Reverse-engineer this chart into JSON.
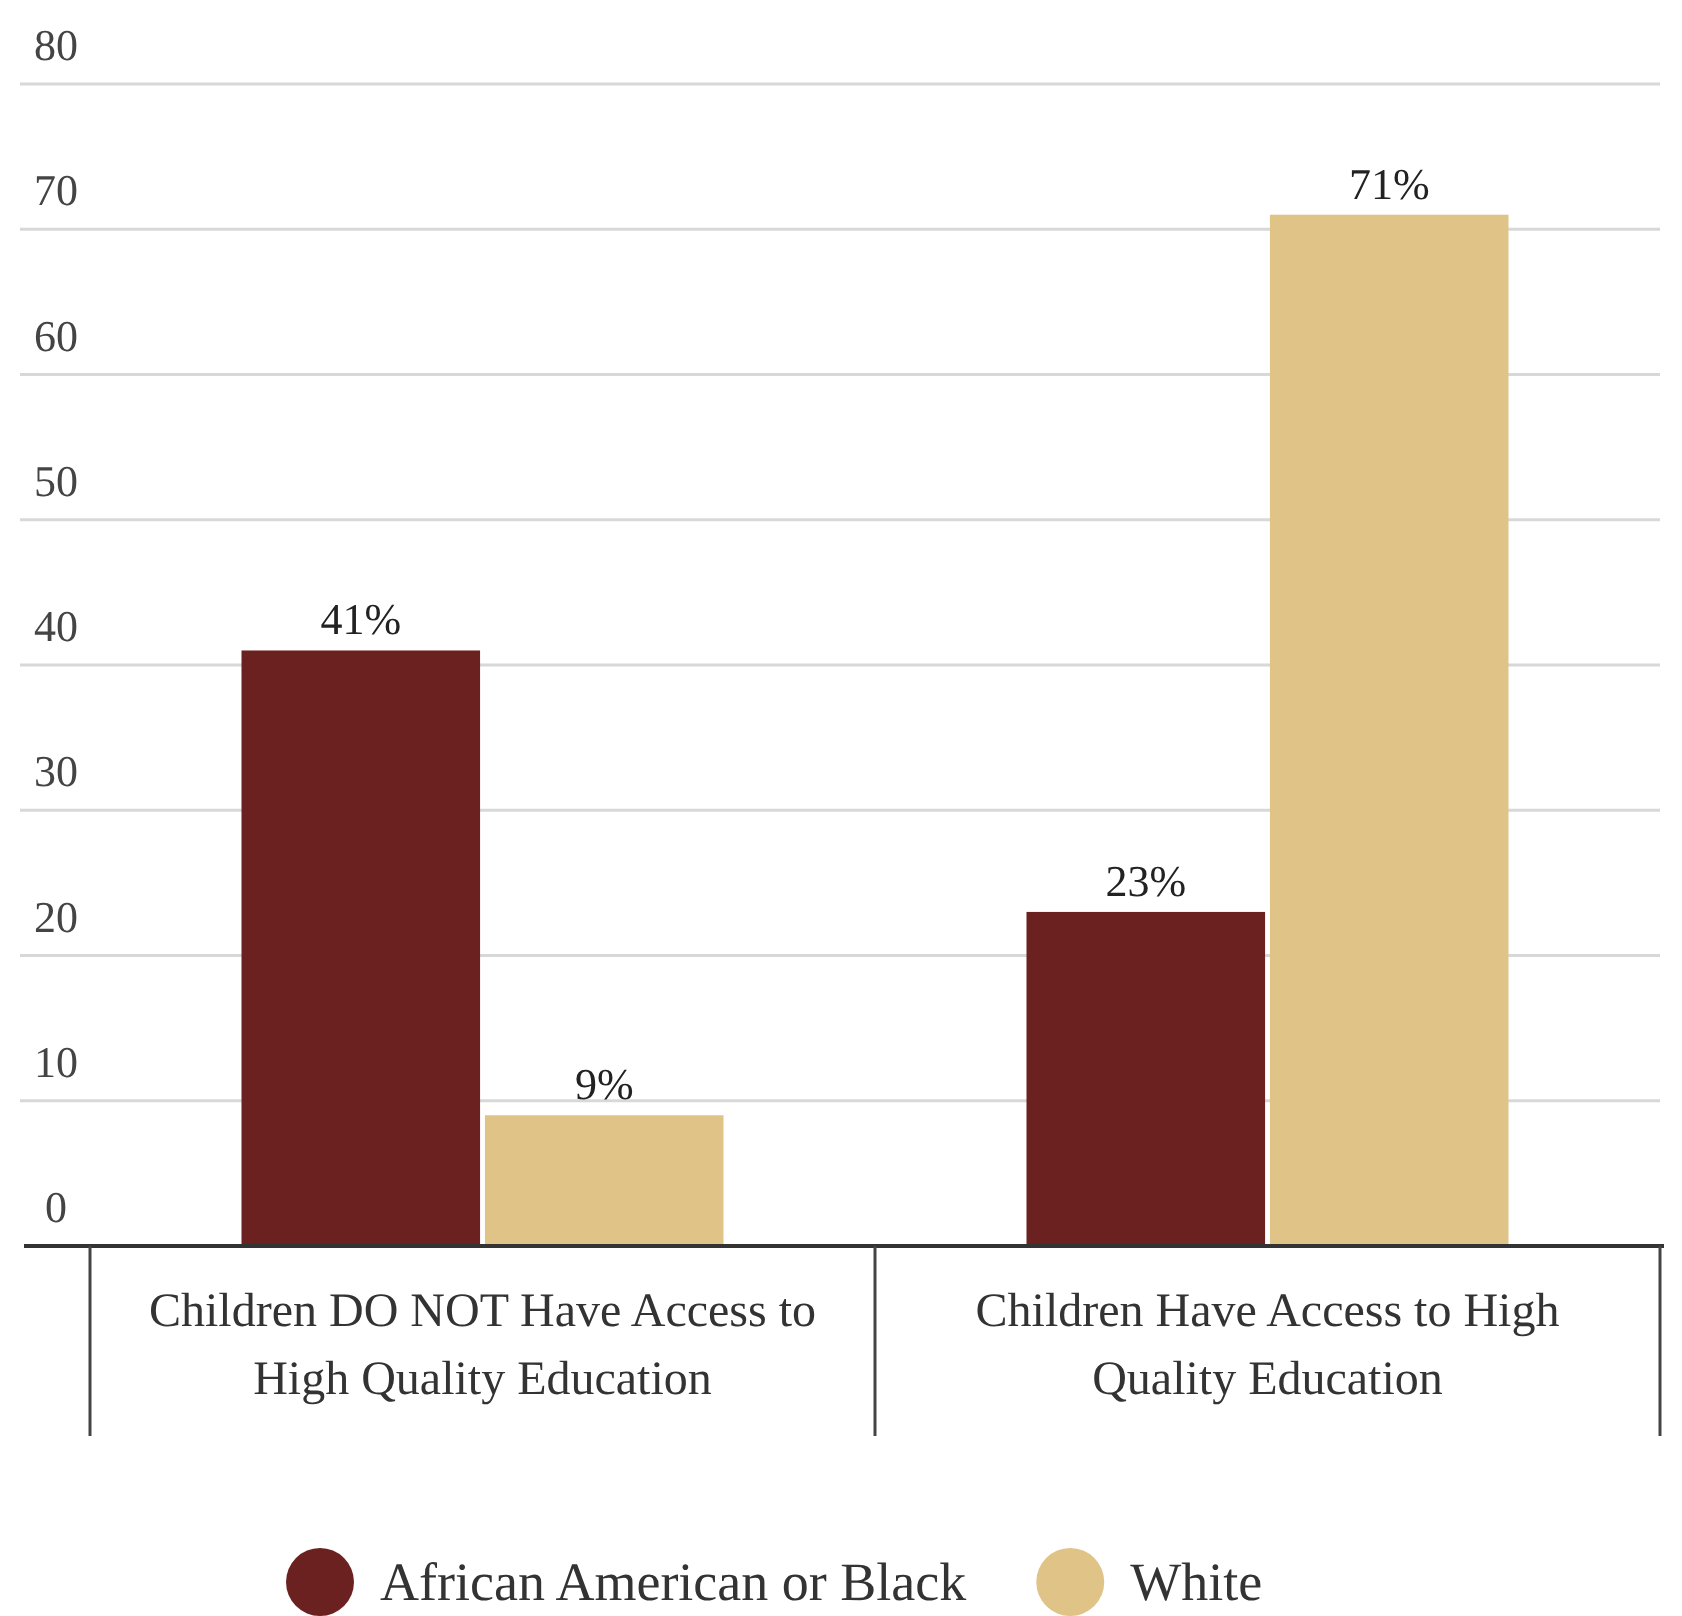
{
  "chart_data": {
    "type": "bar",
    "categories": [
      "Children DO NOT Have Access to High Quality Education",
      "Children Have Access to High Quality Education"
    ],
    "series": [
      {
        "name": "African American or Black",
        "color": "#6b2120",
        "values": [
          41,
          23
        ]
      },
      {
        "name": "White",
        "color": "#dfc387",
        "values": [
          9,
          71
        ]
      }
    ],
    "value_labels": [
      [
        "41%",
        "23%"
      ],
      [
        "9%",
        "71%"
      ]
    ],
    "ylim": [
      0,
      80
    ],
    "yticks": [
      0,
      10,
      20,
      30,
      40,
      50,
      60,
      70,
      80
    ],
    "grid": "y",
    "legend": "bottom"
  }
}
